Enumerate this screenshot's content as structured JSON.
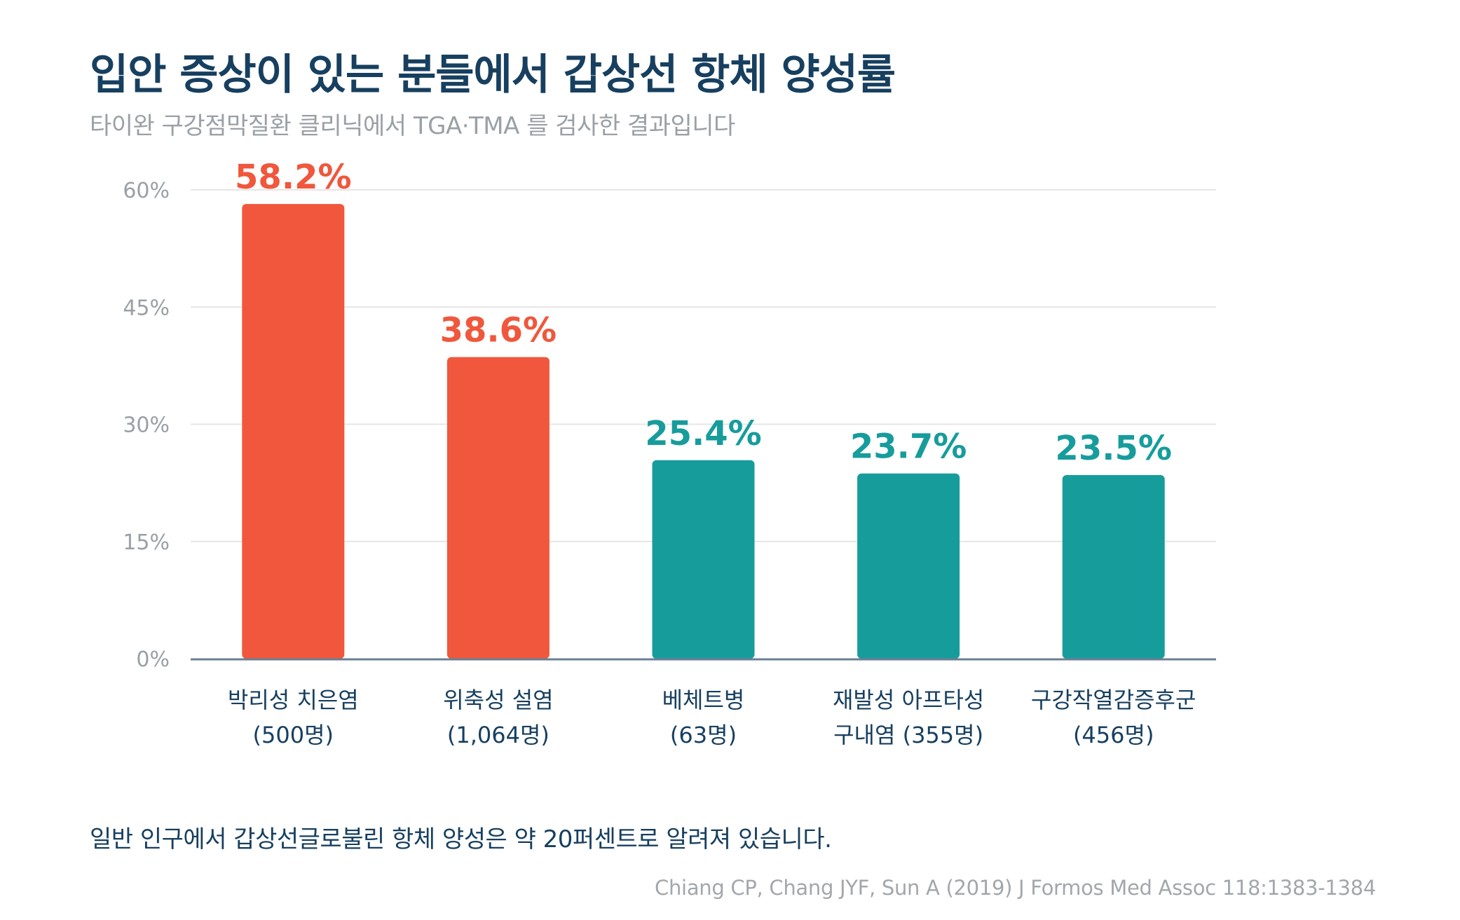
{
  "header": {
    "title": "입안 증상이 있는 분들에서 갑상선 항체 양성률",
    "subtitle": "타이완 구강점막질환 클리닉에서 TGA·TMA 를 검사한 결과입니다"
  },
  "chart_data": {
    "type": "bar",
    "title": "입안 증상이 있는 분들에서 갑상선 항체 양성률",
    "categories": [
      [
        "박리성 치은염",
        "(500명)"
      ],
      [
        "위축성 설염",
        "(1,064명)"
      ],
      [
        "베체트병",
        "(63명)"
      ],
      [
        "재발성 아프타성",
        "구내염 (355명)"
      ],
      [
        "구강작열감증후군",
        "(456명)"
      ]
    ],
    "values": [
      58.2,
      38.6,
      25.4,
      23.7,
      23.5
    ],
    "value_labels": [
      "58.2%",
      "38.6%",
      "25.4%",
      "23.7%",
      "23.5%"
    ],
    "bar_colors": [
      "#f0573c",
      "#f0573c",
      "#179c9c",
      "#179c9c",
      "#179c9c"
    ],
    "yticks": [
      0,
      15,
      30,
      45,
      60
    ],
    "ytick_labels": [
      "0%",
      "15%",
      "30%",
      "45%",
      "60%"
    ],
    "ylim": [
      0,
      60
    ],
    "grid": true,
    "xlabel": "",
    "ylabel": ""
  },
  "footer": {
    "note": "일반 인구에서 갑상선글로불린 항체 양성은 약 20퍼센트로 알려져 있습니다.",
    "source": "Chiang CP, Chang JYF, Sun A (2019) J Formos Med Assoc 118:1383-1384"
  }
}
